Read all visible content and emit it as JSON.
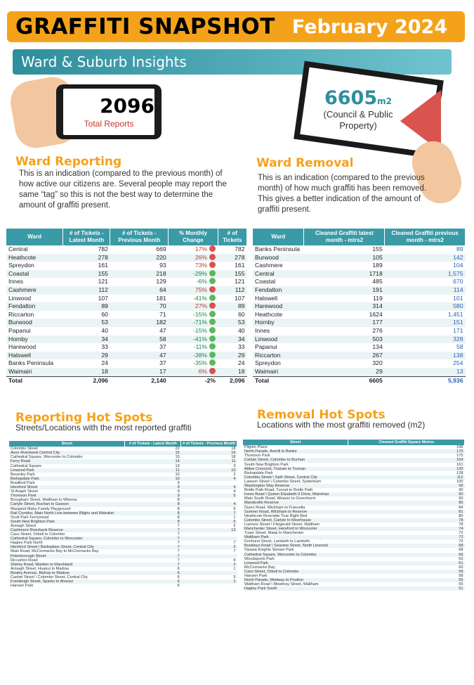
{
  "header": {
    "title": "GRAFFITI SNAPSHOT",
    "period": "February 2024"
  },
  "subheader": "Ward & Suburb Insights",
  "total_reports": {
    "value": "2096",
    "label": "Total Reports"
  },
  "removal_total": {
    "value": "6605",
    "unit": "m2",
    "label_line1": "(Council & Public",
    "label_line2": "Property)"
  },
  "ward_reporting": {
    "title": "Ward Reporting",
    "text": "This is an indication (compared to the previous month) of how active our citizens are. Several people may report the same “tag” so this is not the best way to determine the amount of graffiti present."
  },
  "ward_removal": {
    "title": "Ward Removal",
    "text": "This is an indication (compared to the previous month) of how much graffiti has been removed. This gives a better indication of the amount of graffiti present."
  },
  "reporting_table": {
    "headers": [
      "Ward",
      "# of Tickets - Latest Month",
      "# of Tickets - Previous Month",
      "% Monthly Change",
      "# of Tickets"
    ],
    "rows": [
      [
        "Central",
        "782",
        "669",
        "17%",
        "782",
        "red"
      ],
      [
        "Heathcote",
        "278",
        "220",
        "26%",
        "278",
        "red"
      ],
      [
        "Spreydon",
        "161",
        "93",
        "73%",
        "161",
        "red"
      ],
      [
        "Coastal",
        "155",
        "218",
        "-29%",
        "155",
        "green"
      ],
      [
        "Innes",
        "121",
        "129",
        "-6%",
        "121",
        "green"
      ],
      [
        "Cashmere",
        "112",
        "64",
        "75%",
        "112",
        "red"
      ],
      [
        "Linwood",
        "107",
        "181",
        "-41%",
        "107",
        "green"
      ],
      [
        "Fendalton",
        "89",
        "70",
        "27%",
        "89",
        "red"
      ],
      [
        "Riccarton",
        "60",
        "71",
        "-15%",
        "60",
        "green"
      ],
      [
        "Burwood",
        "53",
        "182",
        "-71%",
        "53",
        "green"
      ],
      [
        "Papanui",
        "40",
        "47",
        "-15%",
        "40",
        "green"
      ],
      [
        "Hornby",
        "34",
        "58",
        "-41%",
        "34",
        "green"
      ],
      [
        "Harewood",
        "33",
        "37",
        "-11%",
        "33",
        "green"
      ],
      [
        "Halswell",
        "29",
        "47",
        "-38%",
        "29",
        "green"
      ],
      [
        "Banks Peninsula",
        "24",
        "37",
        "-35%",
        "24",
        "green"
      ],
      [
        "Waimairi",
        "18",
        "17",
        "6%",
        "18",
        "red"
      ]
    ],
    "total": [
      "Total",
      "2,096",
      "2,140",
      "-2%",
      "2,096"
    ]
  },
  "removal_table": {
    "headers": [
      "Ward",
      "Cleaned Graffiti latest month - mtrs2",
      "Cleaned Graffiti previous month - mtrs2"
    ],
    "rows": [
      [
        "Banks Peninsula",
        "155",
        "89"
      ],
      [
        "Burwood",
        "105",
        "142"
      ],
      [
        "Cashmere",
        "189",
        "104"
      ],
      [
        "Central",
        "1718",
        "1,575"
      ],
      [
        "Coastal",
        "485",
        "670"
      ],
      [
        "Fendalton",
        "191",
        "114"
      ],
      [
        "Halswell",
        "119",
        "101"
      ],
      [
        "Harewood",
        "314",
        "580"
      ],
      [
        "Heathcote",
        "1624",
        "1,451"
      ],
      [
        "Hornby",
        "177",
        "151"
      ],
      [
        "Innes",
        "276",
        "171"
      ],
      [
        "Linwood",
        "503",
        "328"
      ],
      [
        "Papanui",
        "134",
        "58"
      ],
      [
        "Riccarton",
        "267",
        "138"
      ],
      [
        "Spreydon",
        "320",
        "254"
      ],
      [
        "Waimairi",
        "29",
        "13"
      ]
    ],
    "total": [
      "Total",
      "6605",
      "5,936"
    ]
  },
  "reporting_hotspots": {
    "title": "Reporting Hot Spots",
    "subtitle": "Streets/Locations  with the most reported graffiti",
    "headers": [
      "Street",
      "# of Tickets - Latest Month",
      "# of Tickets - Previous Month"
    ],
    "rows": [
      [
        "Colombo Street",
        "22",
        "18"
      ],
      [
        "Avon Riverbank Central City",
        "15",
        "16"
      ],
      [
        "Cathedral Square, Worcester to Colombo",
        "15",
        "18"
      ],
      [
        "Ferry Road",
        "14",
        "11"
      ],
      [
        "Cathedral Square",
        "13",
        "3"
      ],
      [
        "Linwood Park",
        "11",
        "10"
      ],
      [
        "Beverley Park",
        "10",
        "2"
      ],
      [
        "Bishopdale Park",
        "10",
        "4"
      ],
      [
        "Bradford Park",
        "9",
        ""
      ],
      [
        "Hereford Street",
        "9",
        "4"
      ],
      [
        "St Asaph Street",
        "9",
        "4"
      ],
      [
        "Thomson Park",
        "9",
        "5"
      ],
      [
        "Brougham Street, Waltham to Wilsons",
        "8",
        ""
      ],
      [
        "Carlyle Street, Buchan to Gasson",
        "8",
        "4"
      ],
      [
        "Margaret Mahy Family Playground",
        "8",
        "9"
      ],
      [
        "Rail Corridor, Main North Line between Blighs and Wairakei",
        "8",
        "7"
      ],
      [
        "Scott Park Ferrymead",
        "8",
        "1"
      ],
      [
        "South New Brighton Park",
        "8",
        "5"
      ],
      [
        "Armagh Street",
        "7",
        "2"
      ],
      [
        "Cashmere Riverbank Reserve",
        "7",
        "12"
      ],
      [
        "Cass Street, Orbell to Colombo",
        "7",
        ""
      ],
      [
        "Cathedral Square, Colombo to Worcester",
        "7",
        ""
      ],
      [
        "Hagley Park North",
        "7",
        "7"
      ],
      [
        "Hereford Street \\ Barbadoes Street, Central City",
        "7",
        "2"
      ],
      [
        "Main Road, McCormacks Bay to McCormacks Bay",
        "7",
        "7"
      ],
      [
        "Peterborough Street",
        "7",
        ""
      ],
      [
        "Riccarton Road",
        "7",
        "4"
      ],
      [
        "Shirley Road, Warden to Marshland",
        "7",
        "2"
      ],
      [
        "Armagh Street, Huanui to Madras",
        "6",
        "1"
      ],
      [
        "Bealey Avenue, Bishop to Madras",
        "6",
        ""
      ],
      [
        "Cashel Street \\ Colombo Street, Central City",
        "6",
        "3"
      ],
      [
        "Frankleigh Street, Sparks to Alvarez",
        "6",
        "1"
      ],
      [
        "Hansen Park",
        "6",
        ""
      ]
    ]
  },
  "removal_hotspots": {
    "title": "Removal Hot Spots",
    "subtitle": "Locations  with the most graffiti removed (m2)",
    "headers": [
      "Street",
      "Cleaned Graffiti Square Metres"
    ],
    "rows": [
      [
        "Pilgrim Place",
        "196"
      ],
      [
        "North Parade, Averill to Banks",
        "170"
      ],
      [
        "Thomson Park",
        "170"
      ],
      [
        "Carlyle Street, Colombo to Buchan",
        "164"
      ],
      [
        "South New Brighton Park",
        "161"
      ],
      [
        "Attlee Crescent, Truman to Truman",
        "130"
      ],
      [
        "Bishopdale Park",
        "128"
      ],
      [
        "Colombo Street \\ Sath Street, Central City",
        "112"
      ],
      [
        "Lawson Street \\ Colombo Street, Sydenham",
        "100"
      ],
      [
        "Washington Way Reserve",
        "99"
      ],
      [
        "Bridle Path Road, Tunnel to Bridle Path",
        "90"
      ],
      [
        "Innes Road \\ Queen Elizabeth II Drive, Mairehau",
        "90"
      ],
      [
        "Main South Road, Weaver to Greenhurst",
        "90"
      ],
      [
        "Mandeville Reserve",
        "85"
      ],
      [
        "Dyers Road, Wickham to Francella",
        "84"
      ],
      [
        "Sumner Road, Wickham to Reserve",
        "81"
      ],
      [
        "Heathcote Riverside True Right Bed",
        "80"
      ],
      [
        "Colombo Street, Carlyle to Moorhouse",
        "78"
      ],
      [
        "Lismore Street \\ Fitzgerald Street, Waltham",
        "78"
      ],
      [
        "Manchester Street, Hereford to Worcester",
        "74"
      ],
      [
        "Tuam Street, Matai to Manchester",
        "72"
      ],
      [
        "Waltham Park",
        "72"
      ],
      [
        "Fenhurst Street, Lambeth to Lambeth",
        "70"
      ],
      [
        "Buckleys Road \\ Seaview Street, North Linwood",
        "68"
      ],
      [
        "Opawa Knights Stream Park",
        "68"
      ],
      [
        "Cathedral Square, Worcester to Colombo",
        "66"
      ],
      [
        "Woodsports Park",
        "63"
      ],
      [
        "Linwood Park",
        "61"
      ],
      [
        "McCormacks Bay",
        "60"
      ],
      [
        "Cass Street, Orbell to Colombo",
        "59"
      ],
      [
        "Hansen Park",
        "58"
      ],
      [
        "North Parade, Medway to Poulton",
        "55"
      ],
      [
        "Waltham Road \\ Mowbray Street, Waltham",
        "55"
      ],
      [
        "Hagley Park South",
        "51"
      ]
    ]
  },
  "colors": {
    "orange": "#f5a21b",
    "teal": "#3a9aa6",
    "red": "#d9534f",
    "green": "#5cb85c"
  }
}
